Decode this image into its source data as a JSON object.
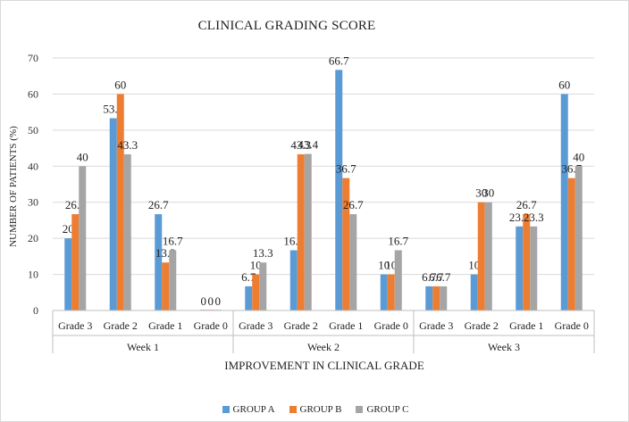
{
  "chart_data": {
    "type": "bar",
    "title": "CLINICAL GRADING SCORE",
    "xlabel": "IMPROVEMENT IN CLINICAL GRADE",
    "ylabel": "NUMBER OF PATIENTS (%)",
    "ylim": [
      0,
      70
    ],
    "yticks": [
      0,
      10,
      20,
      30,
      40,
      50,
      60,
      70
    ],
    "grid": true,
    "legend_position": "bottom",
    "groups": [
      {
        "label": "Week 1",
        "categories": [
          "Grade 3",
          "Grade 2",
          "Grade 1",
          "Grade 0"
        ]
      },
      {
        "label": "Week 2",
        "categories": [
          "Grade 3",
          "Grade 2",
          "Grade 1",
          "Grade 0"
        ]
      },
      {
        "label": "Week 3",
        "categories": [
          "Grade 3",
          "Grade 2",
          "Grade 1",
          "Grade 0"
        ]
      }
    ],
    "series": [
      {
        "name": "GROUP A",
        "color": "#5b9bd5",
        "values": [
          20,
          53.3,
          26.7,
          0,
          6.7,
          16.7,
          66.7,
          10,
          6.7,
          10,
          23.3,
          60
        ]
      },
      {
        "name": "GROUP B",
        "color": "#ed7d31",
        "values": [
          26.7,
          60,
          13.3,
          0,
          10,
          43.3,
          36.7,
          10,
          6.7,
          30,
          26.7,
          36.7
        ]
      },
      {
        "name": "GROUP C",
        "color": "#a5a5a5",
        "values": [
          40,
          43.3,
          16.7,
          0,
          13.3,
          43.4,
          26.7,
          16.7,
          6.7,
          30,
          23.3,
          40
        ]
      }
    ]
  }
}
